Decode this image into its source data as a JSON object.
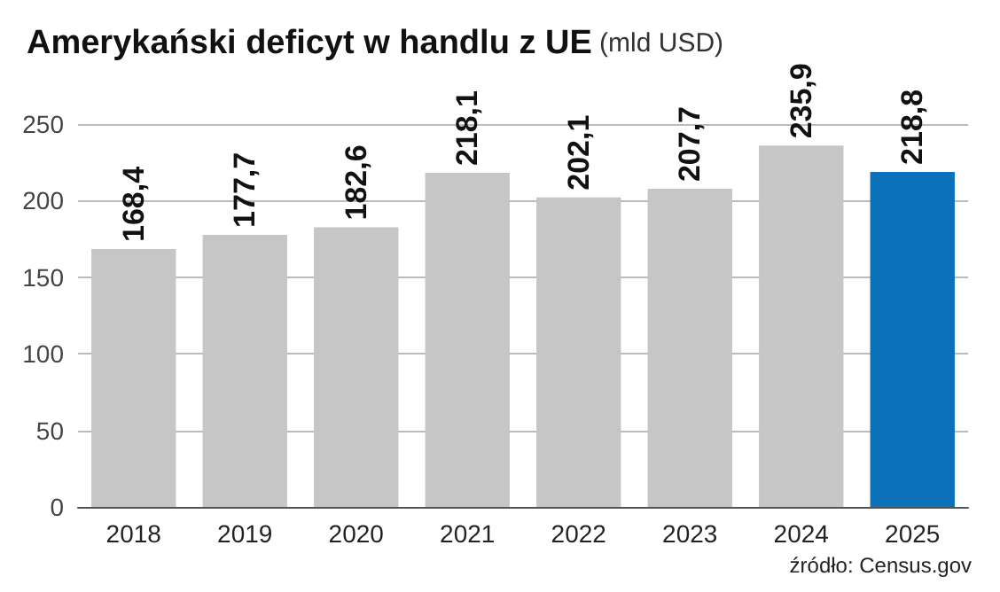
{
  "chart_data": {
    "type": "bar",
    "title": "Amerykański deficyt w handlu z UE",
    "subtitle": "(mld USD)",
    "categories": [
      "2018",
      "2019",
      "2020",
      "2021",
      "2022",
      "2023",
      "2024",
      "2025"
    ],
    "values": [
      168.4,
      177.7,
      182.6,
      218.1,
      202.1,
      207.7,
      235.9,
      218.8
    ],
    "value_labels": [
      "168,4",
      "177,7",
      "182,6",
      "218,1",
      "202,1",
      "207,7",
      "235,9",
      "218,8"
    ],
    "colors": [
      "#c6c6c6",
      "#c6c6c6",
      "#c6c6c6",
      "#c6c6c6",
      "#c6c6c6",
      "#c6c6c6",
      "#c6c6c6",
      "#0b72b9"
    ],
    "ylim": [
      0,
      250
    ],
    "yticks": [
      0,
      50,
      100,
      150,
      200,
      250
    ],
    "grid": "y",
    "annotations": [
      "źródło: Census.gov"
    ]
  }
}
